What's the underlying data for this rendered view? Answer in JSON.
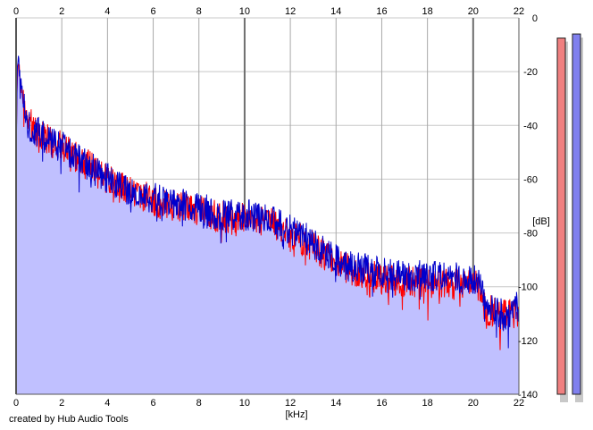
{
  "chart_data": {
    "type": "area",
    "title": "",
    "xlabel": "[kHz]",
    "ylabel": "[dB]",
    "xlim": [
      0,
      22
    ],
    "ylim": [
      -140,
      0
    ],
    "x_ticks": [
      0,
      2,
      4,
      6,
      8,
      10,
      12,
      14,
      16,
      18,
      20,
      22
    ],
    "y_ticks": [
      0,
      -20,
      -40,
      -60,
      -80,
      -100,
      -120,
      -140
    ],
    "grid": true,
    "legend": "none",
    "series": [
      {
        "channel": "left",
        "color": "#ff0000",
        "x": [
          0,
          0.05,
          0.1,
          0.15,
          0.2,
          0.3,
          0.4,
          0.5,
          0.7,
          1,
          1.5,
          2,
          2.5,
          3,
          3.5,
          4,
          4.5,
          5,
          5.5,
          6,
          6.5,
          7,
          7.5,
          8,
          8.5,
          9,
          9.5,
          10,
          10.5,
          11,
          11.5,
          12,
          12.5,
          13,
          13.5,
          14,
          14.5,
          15,
          15.5,
          16,
          16.5,
          17,
          17.5,
          18,
          18.5,
          19,
          19.5,
          20,
          20.3,
          20.5,
          21,
          21.5,
          22
        ],
        "values": [
          -52,
          -22,
          -16,
          -20,
          -24,
          -30,
          -36,
          -38,
          -40,
          -43,
          -46,
          -48,
          -51,
          -54,
          -57,
          -60,
          -63,
          -64,
          -66,
          -68,
          -69,
          -70,
          -71,
          -72,
          -73,
          -74,
          -74,
          -74,
          -75,
          -76,
          -78,
          -80,
          -82,
          -85,
          -88,
          -91,
          -93,
          -95,
          -96,
          -97,
          -98,
          -98,
          -98,
          -99,
          -98,
          -99,
          -99,
          -99,
          -100,
          -108,
          -110,
          -111,
          -109
        ]
      },
      {
        "channel": "right",
        "color": "#0000cc",
        "x": [
          0,
          0.05,
          0.1,
          0.15,
          0.2,
          0.3,
          0.4,
          0.5,
          0.7,
          1,
          1.5,
          2,
          2.5,
          3,
          3.5,
          4,
          4.5,
          5,
          5.5,
          6,
          6.5,
          7,
          7.5,
          8,
          8.5,
          9,
          9.5,
          10,
          10.5,
          11,
          11.5,
          12,
          12.5,
          13,
          13.5,
          14,
          14.5,
          15,
          15.5,
          16,
          16.5,
          17,
          17.5,
          18,
          18.5,
          19,
          19.5,
          20,
          20.3,
          20.5,
          21,
          21.5,
          22
        ],
        "values": [
          -48,
          -20,
          -13,
          -18,
          -23,
          -30,
          -36,
          -39,
          -41,
          -43,
          -46,
          -48,
          -51,
          -54,
          -57,
          -60,
          -63,
          -64,
          -66,
          -67,
          -68,
          -69,
          -70,
          -71,
          -72,
          -73,
          -73,
          -73,
          -74,
          -75,
          -77,
          -79,
          -81,
          -84,
          -87,
          -90,
          -92,
          -93,
          -94,
          -95,
          -96,
          -96,
          -96,
          -96,
          -96,
          -96,
          -97,
          -97,
          -98,
          -107,
          -110,
          -110,
          -107
        ]
      }
    ]
  },
  "level_meters": {
    "left_color": "#f08080",
    "right_color": "#8080ee",
    "left_peak_db": -7.5,
    "right_peak_db": -6,
    "range_db": [
      -140,
      0
    ]
  },
  "footer": {
    "credit": "created by Hub Audio Tools"
  }
}
